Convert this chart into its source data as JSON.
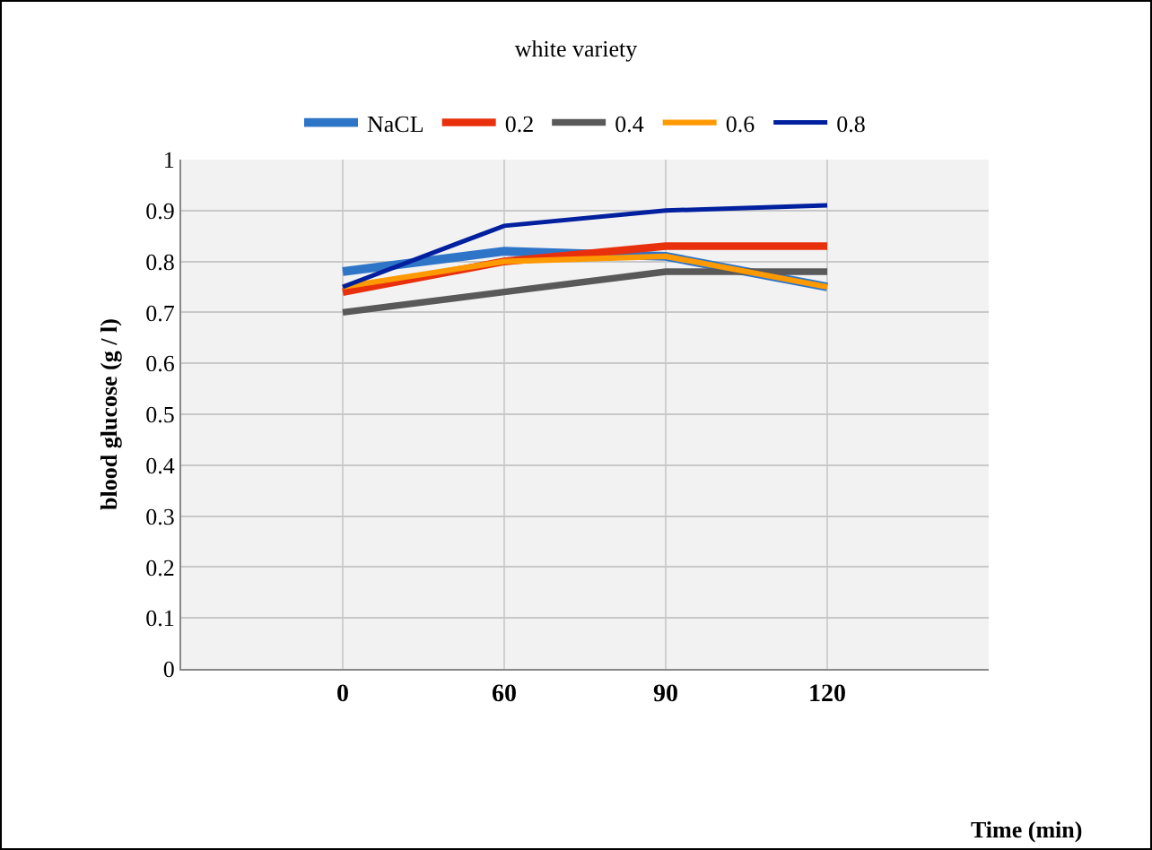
{
  "chart_data": {
    "type": "line",
    "title": "white variety",
    "xlabel": "Time (min)",
    "ylabel": "blood glucose (g / l)",
    "categories": [
      "0",
      "60",
      "90",
      "120"
    ],
    "series": [
      {
        "name": "NaCL",
        "color": "#2e75c8",
        "values": [
          0.78,
          0.82,
          0.81,
          0.75
        ]
      },
      {
        "name": "0.2",
        "color": "#e8300c",
        "values": [
          0.74,
          0.8,
          0.83,
          0.83
        ]
      },
      {
        "name": "0.4",
        "color": "#595959",
        "values": [
          0.7,
          0.74,
          0.78,
          0.78
        ]
      },
      {
        "name": "0.6",
        "color": "#ff9900",
        "values": [
          0.75,
          0.8,
          0.81,
          0.75
        ]
      },
      {
        "name": "0.8",
        "color": "#00209f",
        "values": [
          0.75,
          0.87,
          0.9,
          0.91
        ]
      }
    ],
    "ylim": [
      0,
      1
    ],
    "yticks": [
      0,
      0.1,
      0.2,
      0.3,
      0.4,
      0.5,
      0.6,
      0.7,
      0.8,
      0.9,
      1
    ],
    "grid": true,
    "legend": "top",
    "marker": "none",
    "line_style": "solid"
  }
}
